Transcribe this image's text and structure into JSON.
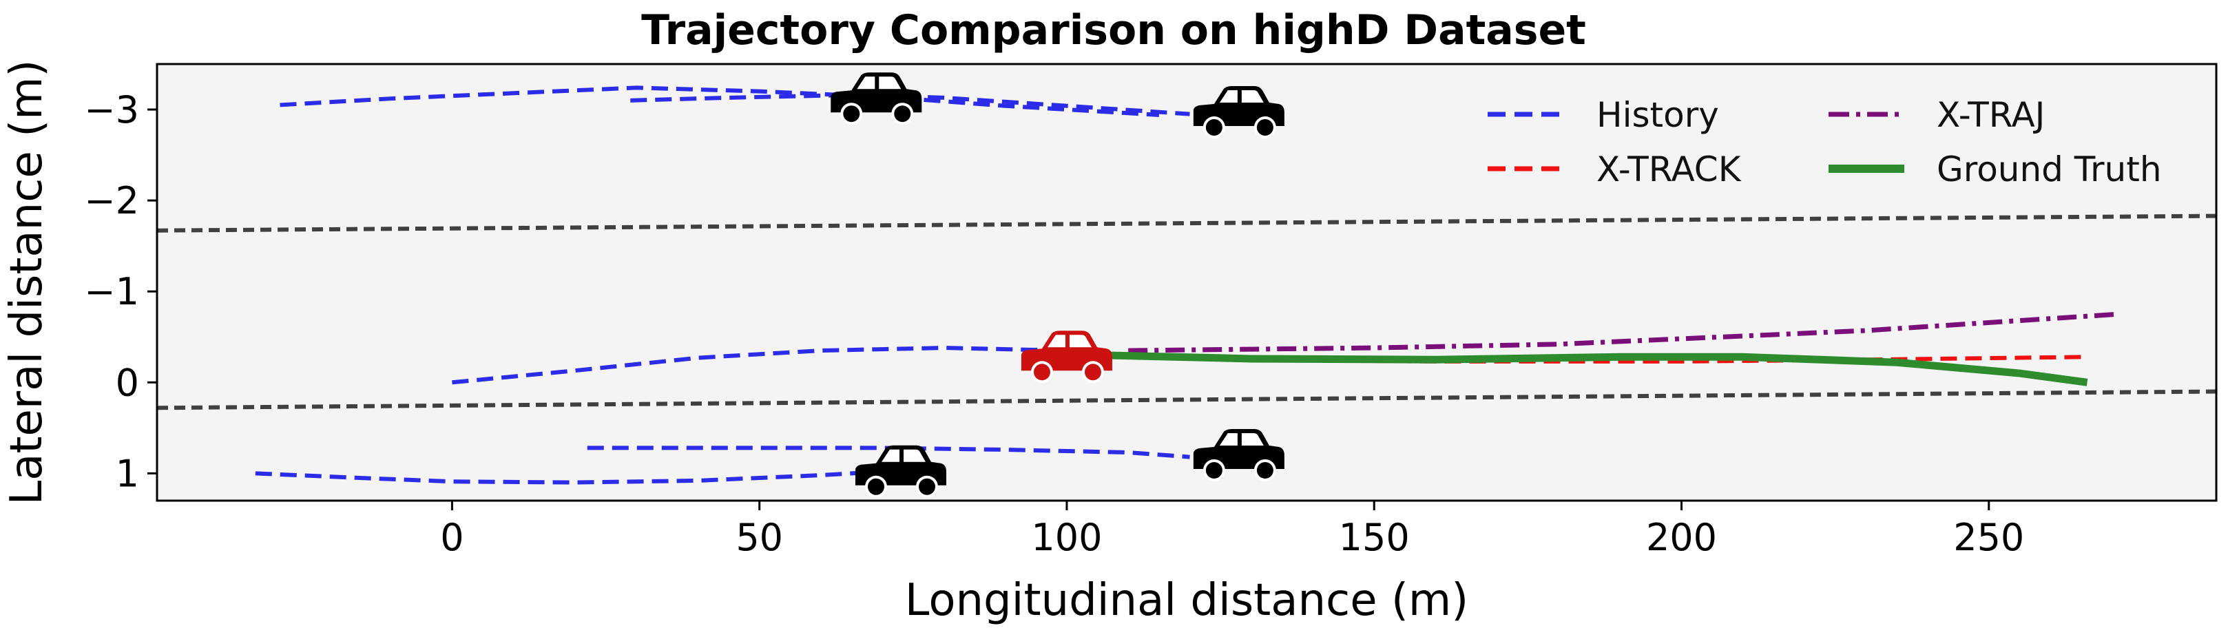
{
  "chart_data": {
    "type": "line",
    "title": "Trajectory Comparison on highD Dataset",
    "xlabel": "Longitudinal distance (m)",
    "ylabel": "Lateral distance (m)",
    "xlim": [
      -48,
      287
    ],
    "ylim": [
      1.3,
      -3.5
    ],
    "y_inverted": true,
    "grid": false,
    "plot_background": "#f4f4f4",
    "x_ticks": [
      0,
      50,
      100,
      150,
      200,
      250
    ],
    "y_ticks": [
      -3,
      -2,
      -1,
      0,
      1
    ],
    "legend": {
      "placement": "top-right",
      "columns": 2,
      "entries": [
        "History",
        "X-TRAJ",
        "X-TRACK",
        "Ground Truth"
      ]
    },
    "colors": {
      "History": "#2b2be8",
      "X-TRACK": "#ee1111",
      "X-TRAJ": "#7a0f7a",
      "Ground Truth": "#2e8b2e",
      "lane_line": "#404040",
      "vehicle_neighbor": "#000000",
      "vehicle_target": "#cc1111"
    },
    "lane_lines": [
      {
        "x": [
          -48,
          287
        ],
        "y": [
          -1.67,
          -1.83
        ]
      },
      {
        "x": [
          -48,
          287
        ],
        "y": [
          0.28,
          0.1
        ]
      }
    ],
    "series": [
      {
        "name": "History",
        "style": "dashed",
        "x": [
          -28,
          -10,
          10,
          30,
          50,
          70,
          90,
          115
        ],
        "y": [
          -3.05,
          -3.12,
          -3.18,
          -3.24,
          -3.2,
          -3.14,
          -3.04,
          -2.94
        ]
      },
      {
        "x": [
          29,
          45,
          65,
          80,
          100,
          120
        ],
        "y": [
          -3.1,
          -3.13,
          -3.16,
          -3.13,
          -3.04,
          -2.95
        ]
      },
      {
        "x": [
          0,
          20,
          40,
          60,
          80,
          100
        ],
        "y": [
          0,
          -0.13,
          -0.27,
          -0.35,
          -0.38,
          -0.35
        ]
      },
      {
        "x": [
          22,
          45,
          70,
          90,
          110,
          120
        ],
        "y": [
          0.72,
          0.72,
          0.72,
          0.74,
          0.77,
          0.82
        ]
      },
      {
        "x": [
          -32,
          -15,
          0,
          20,
          40,
          60,
          70
        ],
        "y": [
          1.0,
          1.05,
          1.09,
          1.1,
          1.08,
          1.02,
          0.98
        ]
      },
      {
        "name": "X-TRACK",
        "style": "dashed",
        "x": [
          105,
          130,
          160,
          200,
          230,
          266
        ],
        "y": [
          -0.3,
          -0.25,
          -0.23,
          -0.23,
          -0.25,
          -0.28
        ]
      },
      {
        "name": "X-TRAJ",
        "style": "dashdot",
        "x": [
          110,
          150,
          180,
          200,
          230,
          271
        ],
        "y": [
          -0.35,
          -0.38,
          -0.42,
          -0.48,
          -0.57,
          -0.75
        ]
      },
      {
        "name": "Ground Truth",
        "style": "solid",
        "x": [
          105,
          130,
          160,
          190,
          210,
          235,
          255,
          266
        ],
        "y": [
          -0.3,
          -0.26,
          -0.25,
          -0.28,
          -0.28,
          -0.22,
          -0.1,
          0
        ]
      }
    ],
    "vehicles": [
      {
        "kind": "neighbor",
        "x": 69,
        "y": -3.12
      },
      {
        "kind": "neighbor",
        "x": 128,
        "y": -2.97
      },
      {
        "kind": "target",
        "x": 100,
        "y": -0.28
      },
      {
        "kind": "neighbor",
        "x": 73,
        "y": 0.98
      },
      {
        "kind": "neighbor",
        "x": 128,
        "y": 0.8
      }
    ]
  }
}
